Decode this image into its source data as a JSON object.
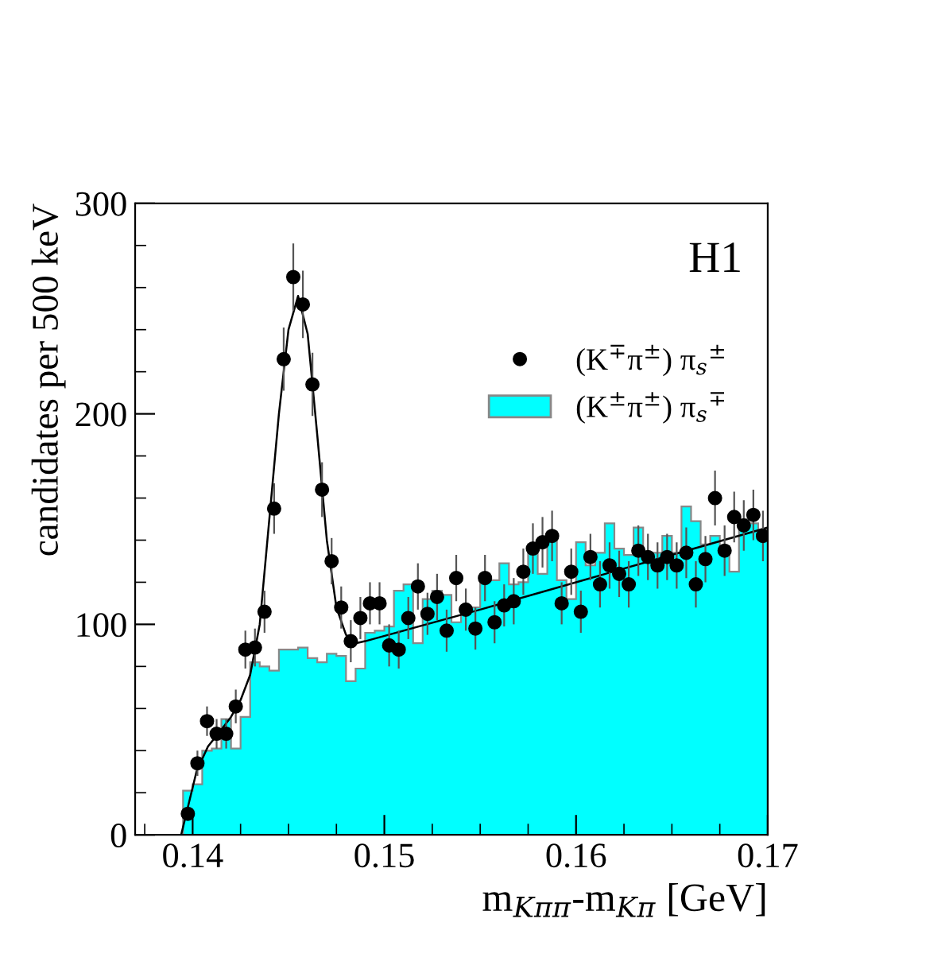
{
  "chart_data": {
    "type": "histogram",
    "xlabel": "m$_{Kππ}$-m$_{Kπ}$ [GeV]",
    "ylabel": "candidates per 500 keV",
    "annotations": [
      "H1"
    ],
    "xlim": [
      0.137,
      0.17
    ],
    "ylim": [
      0,
      300
    ],
    "xticks": [
      {
        "value": 0.14,
        "label": "0.14"
      },
      {
        "value": 0.15,
        "label": "0.15"
      },
      {
        "value": 0.16,
        "label": "0.16"
      },
      {
        "value": 0.17,
        "label": "0.17"
      }
    ],
    "yticks": [
      0,
      100,
      200,
      300
    ],
    "legend": "top right",
    "grid": false,
    "series": [
      {
        "name": "(K$^{±}$π$^{±}$) π$_{s}$$^{∓}$",
        "color": "#00ffff",
        "bins": [
          0.1395,
          0.14,
          0.1405,
          0.141,
          0.1415,
          0.142,
          0.1425,
          0.143,
          0.1435,
          0.144,
          0.1445,
          0.145,
          0.1455,
          0.146,
          0.1465,
          0.147,
          0.1475,
          0.148,
          0.1485,
          0.149,
          0.1495,
          0.15,
          0.1505,
          0.151,
          0.1515,
          0.152,
          0.1525,
          0.153,
          0.1535,
          0.154,
          0.1545,
          0.155,
          0.1555,
          0.156,
          0.1565,
          0.157,
          0.1575,
          0.158,
          0.1585,
          0.159,
          0.1595,
          0.16,
          0.1605,
          0.161,
          0.1615,
          0.162,
          0.1625,
          0.163,
          0.1635,
          0.164,
          0.1645,
          0.165,
          0.1655,
          0.166,
          0.1665,
          0.167,
          0.1675,
          0.168,
          0.1685,
          0.169,
          0.1695,
          0.17
        ],
        "values": [
          21,
          24,
          40,
          41,
          55,
          41,
          56,
          82,
          80,
          78,
          88,
          88,
          89,
          84,
          82,
          86,
          85,
          73,
          79,
          96,
          97,
          99,
          116,
          119,
          91,
          112,
          116,
          114,
          101,
          107,
          108,
          124,
          121,
          129,
          119,
          120,
          138,
          124,
          144,
          121,
          112,
          139,
          128,
          134,
          148,
          136,
          133,
          146,
          131,
          134,
          142,
          134,
          156,
          149,
          138,
          142,
          137,
          125,
          150,
          148,
          145
        ]
      },
      {
        "type": "scatter",
        "name": "(K$^{∓}$π$^{±}$) π$_{s}$$^{±}$",
        "color": "#000000",
        "marker": "circle",
        "x": [
          0.13975,
          0.14025,
          0.14075,
          0.14125,
          0.14175,
          0.14225,
          0.14275,
          0.14325,
          0.14375,
          0.14425,
          0.14475,
          0.14525,
          0.14575,
          0.14625,
          0.14675,
          0.14725,
          0.14775,
          0.14825,
          0.14875,
          0.14925,
          0.14975,
          0.15025,
          0.15075,
          0.15125,
          0.15175,
          0.15225,
          0.15275,
          0.15325,
          0.15375,
          0.15425,
          0.15475,
          0.15525,
          0.15575,
          0.15625,
          0.15675,
          0.15725,
          0.15775,
          0.15825,
          0.15875,
          0.15925,
          0.15975,
          0.16025,
          0.16075,
          0.16125,
          0.16175,
          0.16225,
          0.16275,
          0.16325,
          0.16375,
          0.16425,
          0.16475,
          0.16525,
          0.16575,
          0.16625,
          0.16675,
          0.16725,
          0.16775,
          0.16825,
          0.16875,
          0.16925,
          0.16975
        ],
        "values": [
          10,
          34,
          54,
          48,
          48,
          61,
          88,
          89,
          106,
          155,
          226,
          265,
          252,
          214,
          164,
          130,
          108,
          92,
          103,
          110,
          110,
          90,
          88,
          103,
          118,
          105,
          113,
          97,
          122,
          107,
          98,
          122,
          101,
          109,
          111,
          125,
          136,
          139,
          142,
          110,
          125,
          106,
          132,
          119,
          128,
          124,
          119,
          135,
          132,
          128,
          132,
          128,
          134,
          119,
          131,
          160,
          135,
          151,
          147,
          152,
          142
        ],
        "errors": [
          3,
          6,
          7,
          7,
          7,
          8,
          9,
          9,
          10,
          12,
          15,
          16,
          16,
          15,
          13,
          11,
          10,
          10,
          10,
          10,
          10,
          10,
          9,
          10,
          11,
          10,
          11,
          10,
          11,
          10,
          10,
          11,
          10,
          10,
          11,
          11,
          12,
          12,
          12,
          10,
          11,
          10,
          11,
          11,
          11,
          11,
          11,
          12,
          11,
          11,
          11,
          11,
          12,
          11,
          11,
          13,
          12,
          12,
          12,
          12,
          12
        ]
      },
      {
        "type": "line",
        "color": "#000000",
        "line_style": "solid",
        "x": [
          0.1394,
          0.1398,
          0.1402,
          0.1408,
          0.1415,
          0.142,
          0.1425,
          0.143,
          0.1435,
          0.144,
          0.1445,
          0.145,
          0.1455,
          0.146,
          0.1465,
          0.147,
          0.1475,
          0.148,
          0.1485,
          0.149,
          0.155,
          0.16,
          0.165,
          0.17
        ],
        "values": [
          0,
          15,
          30,
          42,
          50,
          56,
          64,
          76,
          100,
          150,
          200,
          240,
          256,
          238,
          190,
          140,
          108,
          95,
          91,
          92,
          107,
          120,
          133,
          146
        ]
      }
    ]
  }
}
